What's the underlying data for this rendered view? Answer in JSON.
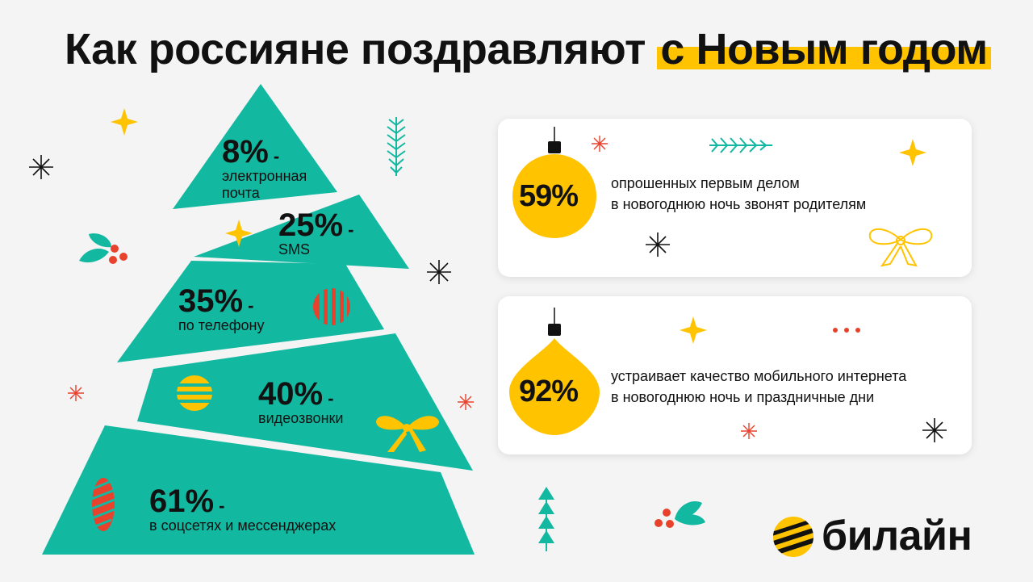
{
  "title": {
    "main": "Как россияне поздравляют",
    "highlight": "с Новым годом"
  },
  "tree_tiers": [
    {
      "pct": "8%",
      "dash": " -",
      "label_lines": [
        "электронная",
        "почта"
      ]
    },
    {
      "pct": "25%",
      "dash": " -",
      "label_lines": [
        "SMS"
      ]
    },
    {
      "pct": "35%",
      "dash": " -",
      "label_lines": [
        "по телефону"
      ]
    },
    {
      "pct": "40%",
      "dash": " -",
      "label_lines": [
        "видеозвонки"
      ]
    },
    {
      "pct": "61%",
      "dash": " -",
      "label_lines": [
        "в соцсетях и мессенджерах"
      ]
    }
  ],
  "cards": [
    {
      "pct": "59%",
      "line1": "опрошенных первым делом",
      "line2": "в новогоднюю ночь звонят родителям"
    },
    {
      "pct": "92%",
      "line1": "устраивает качество мобильного интернета",
      "line2": "в новогоднюю ночь и праздничные дни"
    }
  ],
  "brand": {
    "name": "билайн"
  },
  "colors": {
    "teal": "#13b8a0",
    "yellow": "#ffc300",
    "red": "#e8412c",
    "black": "#111111",
    "background": "#f4f4f4"
  },
  "decorations": [
    "sparkle-icon",
    "snowflake-icon",
    "fir-branch-icon",
    "holly-berries-icon",
    "bow-icon",
    "ornament-ball-icon",
    "mini-tree-icon"
  ]
}
